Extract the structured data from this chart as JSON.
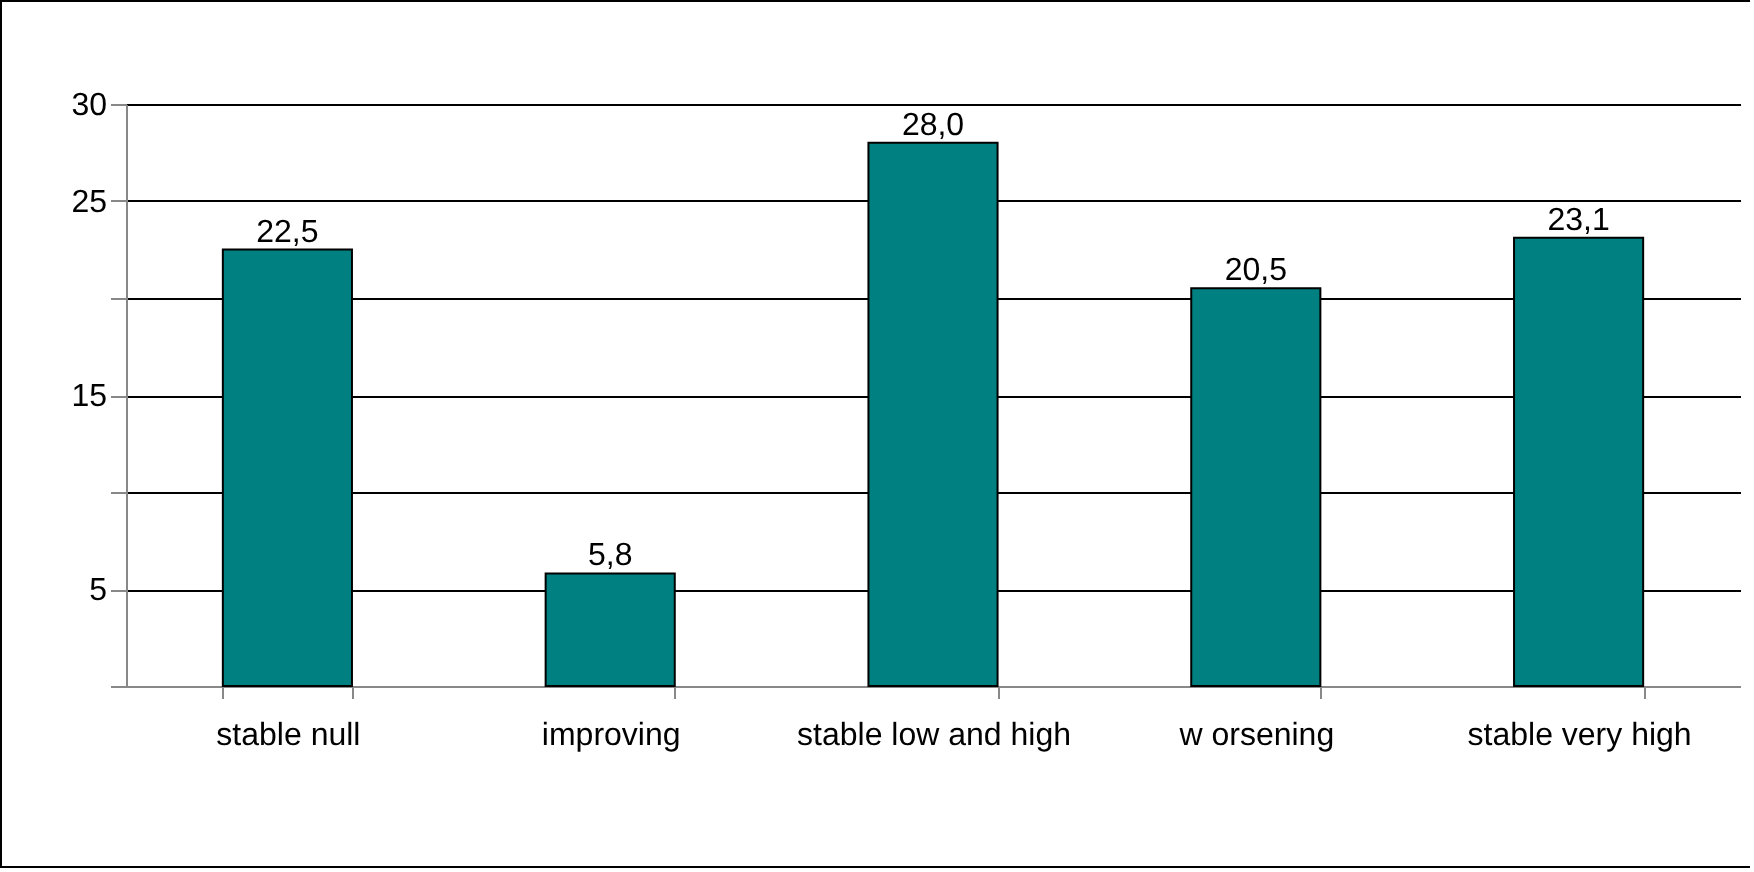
{
  "chart_data": {
    "type": "bar",
    "categories": [
      "stable null",
      "improving",
      "stable low and high",
      "w orsening",
      "stable very high"
    ],
    "values": [
      22.5,
      5.8,
      28.0,
      20.5,
      23.1
    ],
    "color": "#008080",
    "value_labels": [
      "22,5",
      "5,8",
      "28,0",
      "20,5",
      "23,1"
    ],
    "ylim": [
      0,
      30
    ],
    "yticks": [
      {
        "value": 0,
        "label": null
      },
      5,
      {
        "value": 10,
        "label": null
      },
      15,
      {
        "value": 20,
        "label": null
      },
      25,
      30
    ],
    "grid": "y"
  }
}
